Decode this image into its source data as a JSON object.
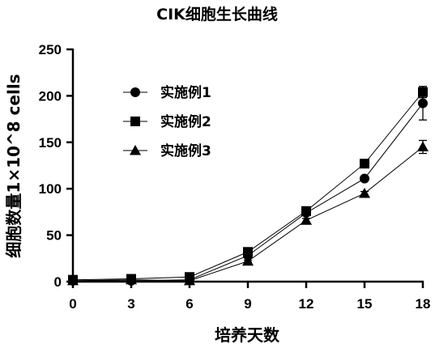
{
  "chart_data": {
    "type": "line",
    "title": "CIK细胞生长曲线",
    "xlabel": "培养天数",
    "ylabel": "细胞数量1×10^8 cells",
    "x": [
      0,
      3,
      6,
      9,
      12,
      15,
      18
    ],
    "x_ticks": [
      "0",
      "3",
      "6",
      "9",
      "12",
      "15",
      "18"
    ],
    "y_ticks": [
      "0",
      "50",
      "100",
      "150",
      "200",
      "250"
    ],
    "xlim": [
      0,
      18
    ],
    "ylim": [
      0,
      250
    ],
    "grid": false,
    "legend_position": "top-left",
    "series": [
      {
        "name": "实施例1",
        "marker": "circle",
        "values": [
          1,
          1,
          2,
          28,
          74,
          111,
          192
        ],
        "errors": [
          0,
          0,
          0,
          1,
          2,
          2,
          18
        ]
      },
      {
        "name": "实施例2",
        "marker": "square",
        "values": [
          2,
          3,
          5,
          32,
          76,
          127,
          204
        ],
        "errors": [
          0,
          0,
          0,
          1,
          2,
          2,
          6
        ]
      },
      {
        "name": "实施例3",
        "marker": "triangle",
        "values": [
          1,
          2,
          1,
          22,
          66,
          95,
          145
        ],
        "errors": [
          0,
          0,
          0,
          1,
          2,
          2,
          7
        ]
      }
    ]
  }
}
